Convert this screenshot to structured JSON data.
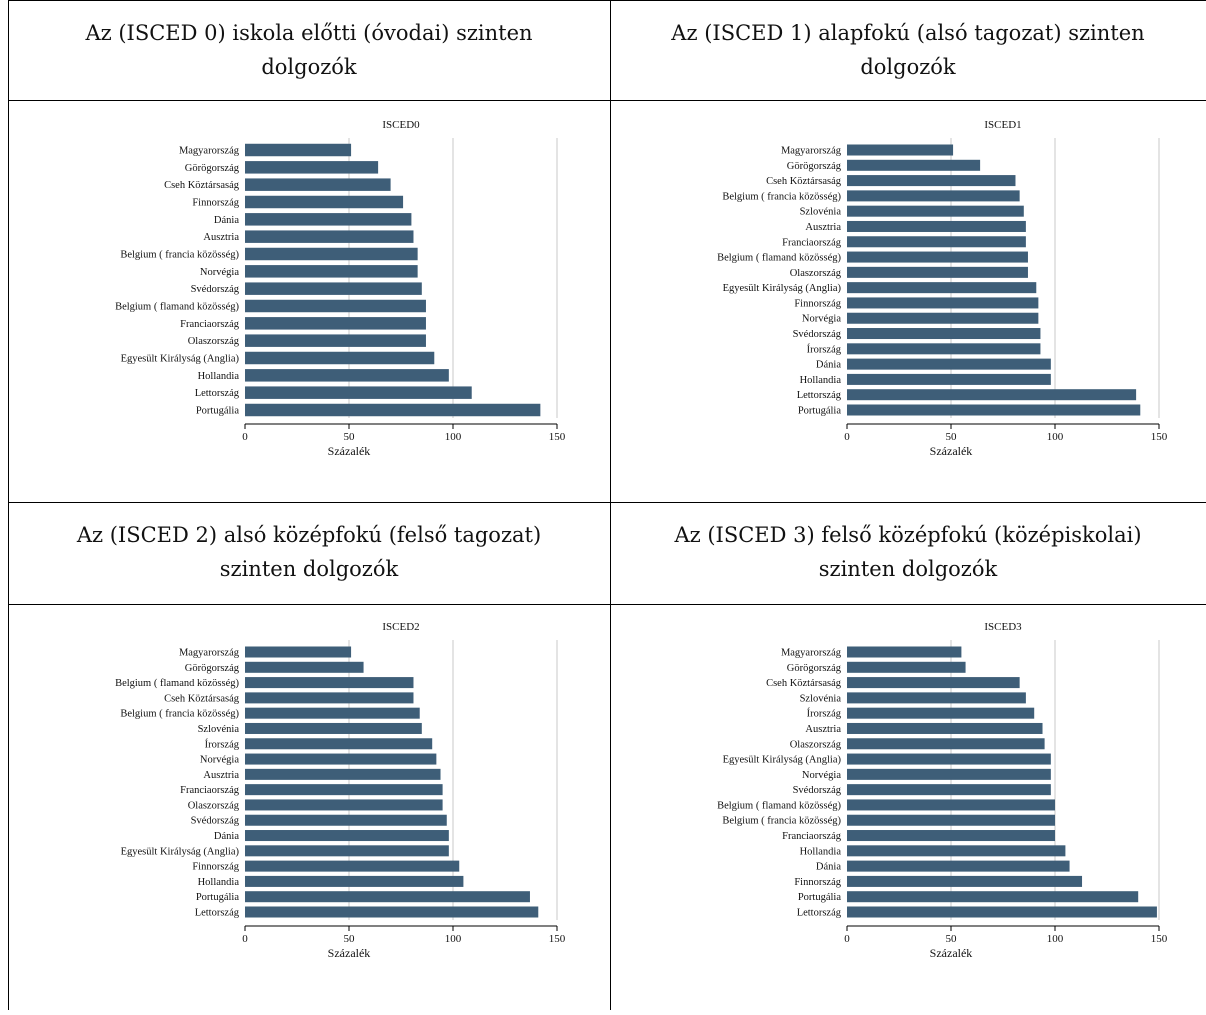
{
  "panels": [
    {
      "title": "Az (ISCED 0) iskola előtti (óvodai) szinten dolgozók"
    },
    {
      "title": "Az (ISCED 1) alapfokú (alsó tagozat) szinten dolgozók"
    },
    {
      "title": "Az (ISCED 2) alsó középfokú (felső tagozat) szinten dolgozók"
    },
    {
      "title": "Az (ISCED 3) felső középfokú (középiskolai) szinten dolgozók"
    }
  ],
  "colors": {
    "bar": "#3e5e78",
    "grid": "#c8c8c8"
  },
  "chart_data": [
    {
      "type": "bar",
      "orientation": "horizontal",
      "title": "ISCED0",
      "xlabel": "Százalék",
      "xlim": [
        0,
        150
      ],
      "xticks": [
        0,
        50,
        100,
        150
      ],
      "grid": true,
      "categories": [
        "Magyarország",
        "Görögország",
        "Cseh Köztársaság",
        "Finnország",
        "Dánia",
        "Ausztria",
        "Belgium ( francia közösség)",
        "Norvégia",
        "Svédország",
        "Belgium ( flamand közösség)",
        "Franciaország",
        "Olaszország",
        "Egyesült Királyság (Anglia)",
        "Hollandia",
        "Lettország",
        "Portugália"
      ],
      "values": [
        51,
        64,
        70,
        76,
        80,
        81,
        83,
        83,
        85,
        87,
        87,
        87,
        91,
        98,
        109,
        142
      ]
    },
    {
      "type": "bar",
      "orientation": "horizontal",
      "title": "ISCED1",
      "xlabel": "Százalék",
      "xlim": [
        0,
        150
      ],
      "xticks": [
        0,
        50,
        100,
        150
      ],
      "grid": true,
      "categories": [
        "Magyarország",
        "Görögország",
        "Cseh Köztársaság",
        "Belgium ( francia közösség)",
        "Szlovénia",
        "Ausztria",
        "Franciaország",
        "Belgium ( flamand közösség)",
        "Olaszország",
        "Egyesült Királyság (Anglia)",
        "Finnország",
        "Norvégia",
        "Svédország",
        "Írország",
        "Dánia",
        "Hollandia",
        "Lettország",
        "Portugália"
      ],
      "values": [
        51,
        64,
        81,
        83,
        85,
        86,
        86,
        87,
        87,
        91,
        92,
        92,
        93,
        93,
        98,
        98,
        139,
        141
      ]
    },
    {
      "type": "bar",
      "orientation": "horizontal",
      "title": "ISCED2",
      "xlabel": "Százalék",
      "xlim": [
        0,
        150
      ],
      "xticks": [
        0,
        50,
        100,
        150
      ],
      "grid": true,
      "categories": [
        "Magyarország",
        "Görögország",
        "Belgium ( flamand közösség)",
        "Cseh Köztársaság",
        "Belgium ( francia közösség)",
        "Szlovénia",
        "Írország",
        "Norvégia",
        "Ausztria",
        "Franciaország",
        "Olaszország",
        "Svédország",
        "Dánia",
        "Egyesült Királyság (Anglia)",
        "Finnország",
        "Hollandia",
        "Portugália",
        "Lettország"
      ],
      "values": [
        51,
        57,
        81,
        81,
        84,
        85,
        90,
        92,
        94,
        95,
        95,
        97,
        98,
        98,
        103,
        105,
        137,
        141
      ]
    },
    {
      "type": "bar",
      "orientation": "horizontal",
      "title": "ISCED3",
      "xlabel": "Százalék",
      "xlim": [
        0,
        150
      ],
      "xticks": [
        0,
        50,
        100,
        150
      ],
      "grid": true,
      "categories": [
        "Magyarország",
        "Görögország",
        "Cseh Köztársaság",
        "Szlovénia",
        "Írország",
        "Ausztria",
        "Olaszország",
        "Egyesült Királyság (Anglia)",
        "Norvégia",
        "Svédország",
        "Belgium ( flamand közösség)",
        "Belgium ( francia közösség)",
        "Franciaország",
        "Hollandia",
        "Dánia",
        "Finnország",
        "Portugália",
        "Lettország"
      ],
      "values": [
        55,
        57,
        83,
        86,
        90,
        94,
        95,
        98,
        98,
        98,
        100,
        100,
        100,
        105,
        107,
        113,
        140,
        149
      ]
    }
  ]
}
